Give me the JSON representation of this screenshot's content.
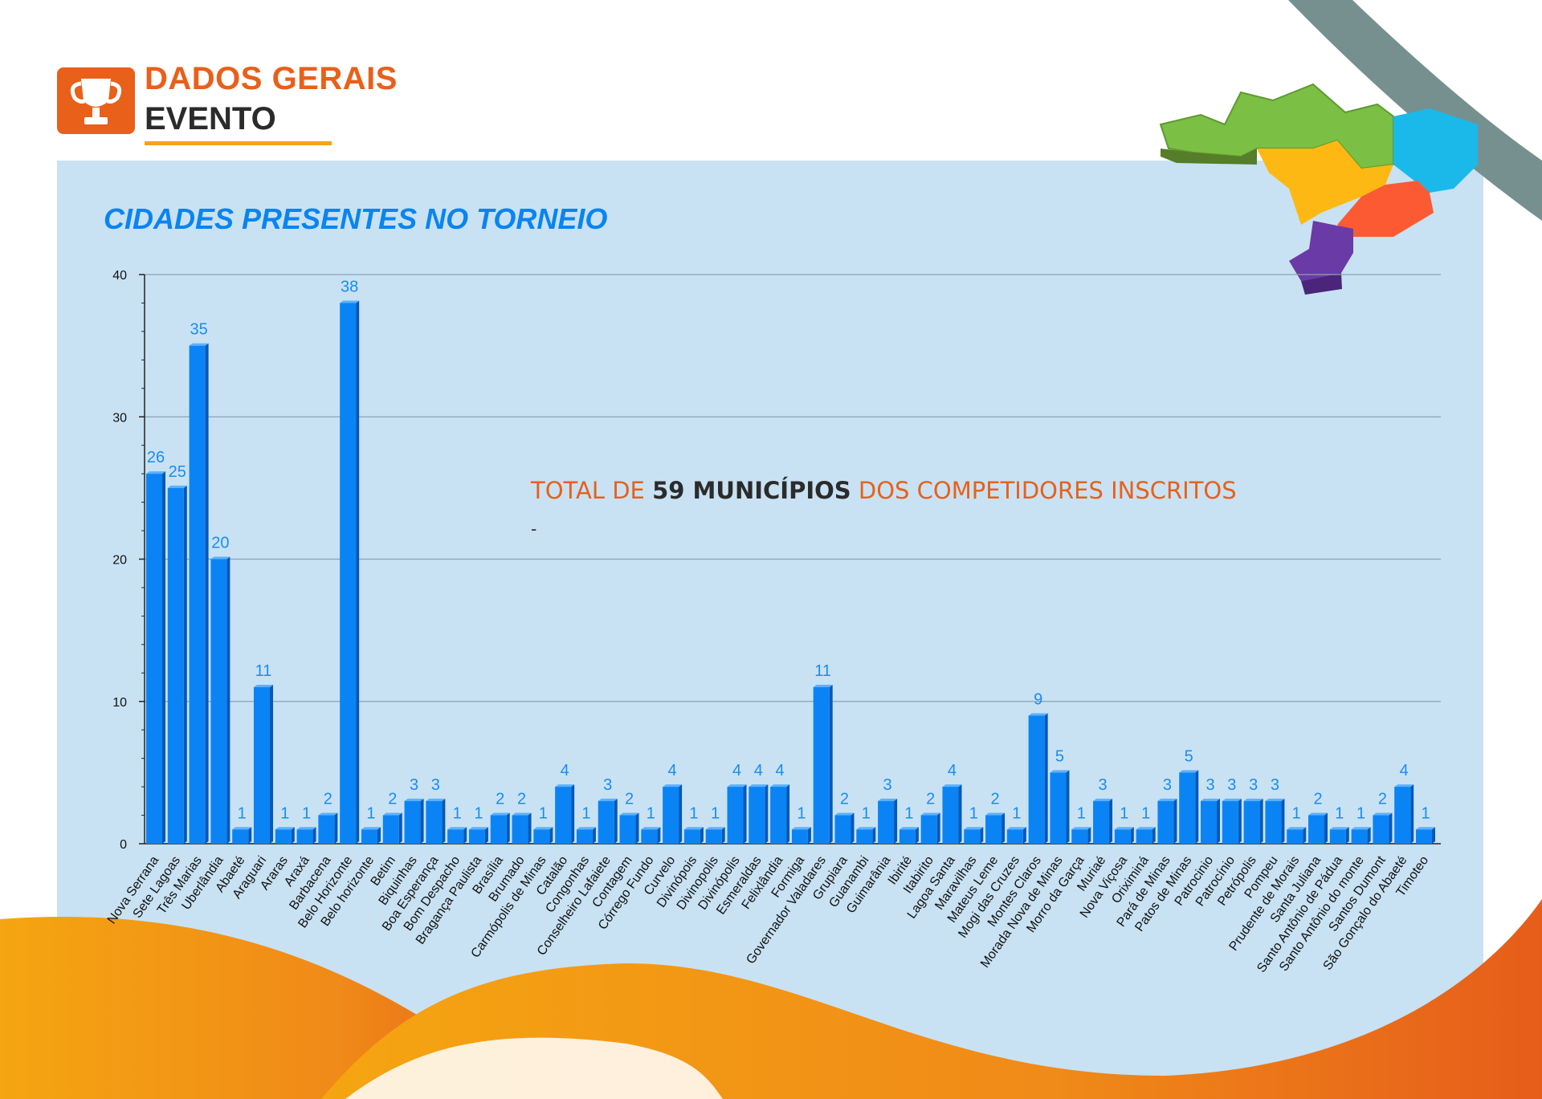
{
  "header": {
    "title": "DADOS GERAIS",
    "subtitle": "EVENTO",
    "icon": "trophy-icon"
  },
  "summary": {
    "prefix": "TOTAL DE ",
    "highlight": "59 MUNICÍPIOS",
    "suffix": " DOS COMPETIDORES INSCRITOS",
    "dash": "-"
  },
  "colors": {
    "accent": "#e8601a",
    "bar": "#0a84f5",
    "title": "#0a84f0",
    "panel": "#c8e2f3"
  },
  "chart_data": {
    "type": "bar",
    "title": "CIDADES PRESENTES NO TORNEIO",
    "xlabel": "",
    "ylabel": "",
    "ylim": [
      0,
      40
    ],
    "yticks": [
      0,
      10,
      20,
      30,
      40
    ],
    "grid": true,
    "categories": [
      "Nova Serrana",
      "Sete Lagoas",
      "Três Marias",
      "Uberlândia",
      "Abaeté",
      "Araguari",
      "Araras",
      "Araxá",
      "Barbacena",
      "Belo Horizonte",
      "Belo horizonte",
      "Betim",
      "Biquinhas",
      "Boa Esperança",
      "Bom Despacho",
      "Bragança Paulista",
      "Brasília",
      "Brumado",
      "Carmópolis de Minas",
      "Catalão",
      "Congonhas",
      "Conselheiro Lafaiete",
      "Contagem",
      "Córrego Fundo",
      "Curvelo",
      "Divinópois",
      "Divinopolis",
      "Divinópolis",
      "Esmeraldas",
      "Felixlândia",
      "Formiga",
      "Governador Valadares",
      "Grupiara",
      "Guanambi",
      "Guimarânia",
      "Ibirité",
      "Itabirito",
      "Lagoa Santa",
      "Maravilhas",
      "Mateus Leme",
      "Mogi das Cruzes",
      "Montes Claros",
      "Morada Nova de Minas",
      "Morro da Garça",
      "Muriaé",
      "Nova Viçosa",
      "Oriximiná",
      "Pará de Minas",
      "Patos de Minas",
      "Patrocinio",
      "Patrocínio",
      "Petrópolis",
      "Pompeu",
      "Prudente de Morais",
      "Santa Juliana",
      "Santo Antônio de Pádua",
      "Santo Antônio do monte",
      "Santos Dumont",
      "São Gonçalo do Abaeté",
      "Timoteo"
    ],
    "values": [
      26,
      25,
      35,
      20,
      1,
      11,
      1,
      1,
      2,
      38,
      1,
      2,
      3,
      3,
      1,
      1,
      2,
      2,
      1,
      4,
      1,
      3,
      2,
      1,
      4,
      1,
      1,
      4,
      4,
      4,
      1,
      11,
      2,
      1,
      3,
      1,
      2,
      4,
      1,
      2,
      1,
      9,
      5,
      1,
      3,
      1,
      1,
      3,
      5,
      3,
      3,
      3,
      3,
      1,
      2,
      1,
      1,
      2,
      4,
      1
    ]
  }
}
